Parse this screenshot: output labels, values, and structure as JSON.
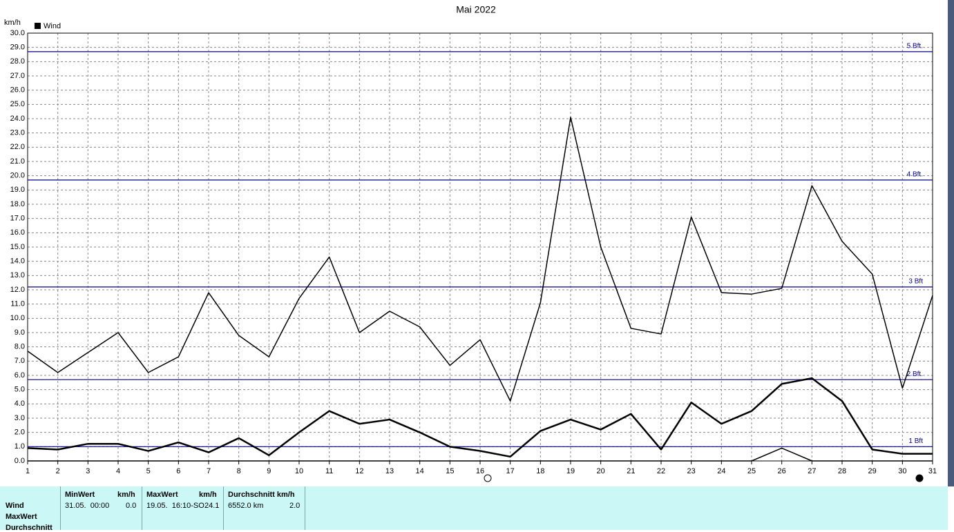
{
  "chart_data": {
    "type": "line",
    "title": "Mai 2022",
    "y_unit": "km/h",
    "legend": "Wind",
    "categories": [
      "1",
      "2",
      "3",
      "4",
      "5",
      "6",
      "7",
      "8",
      "9",
      "10",
      "11",
      "12",
      "13",
      "14",
      "15",
      "16",
      "17",
      "18",
      "19",
      "20",
      "21",
      "22",
      "23",
      "24",
      "25",
      "26",
      "27",
      "28",
      "29",
      "30",
      "31"
    ],
    "series": [
      {
        "color": "#000000",
        "width": 1.5,
        "values": [
          7.7,
          6.2,
          7.6,
          9.0,
          6.2,
          7.3,
          11.8,
          8.8,
          7.3,
          11.4,
          14.3,
          9.0,
          10.5,
          9.4,
          6.7,
          8.5,
          4.2,
          11.1,
          24.1,
          15.0,
          9.3,
          8.9,
          17.1,
          11.8,
          11.7,
          12.1,
          19.3,
          15.4,
          13.1,
          5.1,
          11.6
        ]
      },
      {
        "color": "#000000",
        "width": 2.5,
        "values": [
          0.9,
          0.8,
          1.2,
          1.2,
          0.7,
          1.3,
          0.6,
          1.6,
          0.4,
          2.0,
          3.5,
          2.6,
          2.9,
          2.0,
          1.0,
          0.7,
          0.3,
          2.1,
          2.9,
          2.2,
          3.3,
          0.8,
          4.1,
          2.6,
          3.5,
          5.4,
          5.8,
          4.2,
          0.8,
          0.5,
          0.5
        ]
      },
      {
        "color": "#000000",
        "width": 1.5,
        "values": [
          0,
          0,
          0,
          0,
          0,
          0,
          0,
          0,
          0,
          0,
          0,
          0,
          0,
          0,
          0,
          0,
          0,
          0,
          0,
          0,
          0,
          0,
          0,
          0,
          0,
          0.9,
          0,
          0,
          0,
          0,
          0
        ]
      }
    ],
    "ylim": [
      0,
      30
    ],
    "yticks": [
      {
        "value": 0,
        "label": "0.0"
      },
      {
        "value": 1,
        "label": "1.0"
      },
      {
        "value": 2,
        "label": "2.0"
      },
      {
        "value": 3,
        "label": "3.0"
      },
      {
        "value": 4,
        "label": "4.0"
      },
      {
        "value": 5,
        "label": "5.0"
      },
      {
        "value": 6,
        "label": "6.0"
      },
      {
        "value": 7,
        "label": "7.0"
      },
      {
        "value": 8,
        "label": "8.0"
      },
      {
        "value": 9,
        "label": "9.0"
      },
      {
        "value": 10,
        "label": "10.0"
      },
      {
        "value": 11,
        "label": "11.0"
      },
      {
        "value": 12,
        "label": "12.0"
      },
      {
        "value": 13,
        "label": "13.0"
      },
      {
        "value": 14,
        "label": "14.0"
      },
      {
        "value": 15,
        "label": "15.0"
      },
      {
        "value": 16,
        "label": "16.0"
      },
      {
        "value": 17,
        "label": "17.0"
      },
      {
        "value": 18,
        "label": "18.0"
      },
      {
        "value": 19,
        "label": "19.0"
      },
      {
        "value": 20,
        "label": "20.0"
      },
      {
        "value": 21,
        "label": "21.0"
      },
      {
        "value": 22,
        "label": "22.0"
      },
      {
        "value": 23,
        "label": "23.0"
      },
      {
        "value": 24,
        "label": "24.0"
      },
      {
        "value": 25,
        "label": "25.0"
      },
      {
        "value": 26,
        "label": "26.0"
      },
      {
        "value": 27,
        "label": "27.0"
      },
      {
        "value": 28,
        "label": "28.0"
      },
      {
        "value": 29,
        "label": "29.0"
      },
      {
        "value": 30,
        "label": "30.0"
      }
    ],
    "grid": true,
    "reference_lines": [
      {
        "value": 1.0,
        "label": "1 Bft"
      },
      {
        "value": 5.7,
        "label": "2 Bft."
      },
      {
        "value": 12.2,
        "label": "3 Bft"
      },
      {
        "value": 19.7,
        "label": "4 Bft."
      },
      {
        "value": 28.7,
        "label": "5 Bft."
      }
    ],
    "reference_color": "#00008b"
  },
  "table": {
    "columns": [
      "MinWert",
      "km/h",
      "MaxWert",
      "km/h",
      "Durchschnitt km/h"
    ],
    "row_labels": [
      "Wind",
      "MaxWert",
      "Durchschnitt"
    ],
    "cells": [
      "31.05.  00:00",
      "0.0",
      "19.05.  16:10-SO",
      "24.1",
      "6552.0 km",
      "2.0"
    ]
  }
}
